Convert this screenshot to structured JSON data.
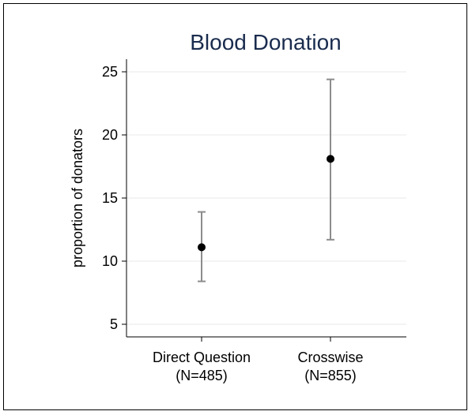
{
  "chart_data": {
    "type": "scatter",
    "title": "Blood Donation",
    "ylabel": "proportion of donators",
    "xlabel": "",
    "categories": [
      {
        "line1": "Direct Question",
        "line2": "(N=485)"
      },
      {
        "line1": "Crosswise",
        "line2": "(N=855)"
      }
    ],
    "values": [
      11.1,
      18.1
    ],
    "ci_low": [
      8.4,
      11.7
    ],
    "ci_high": [
      13.9,
      24.4
    ],
    "ylim": [
      4,
      26
    ],
    "yticks": [
      5,
      10,
      15,
      20,
      25
    ],
    "grid": true,
    "colors": {
      "point": "#000000",
      "errorbar": "#8c8c8c",
      "grid": "#e8e8e8",
      "title": "#1a2c4e"
    }
  }
}
